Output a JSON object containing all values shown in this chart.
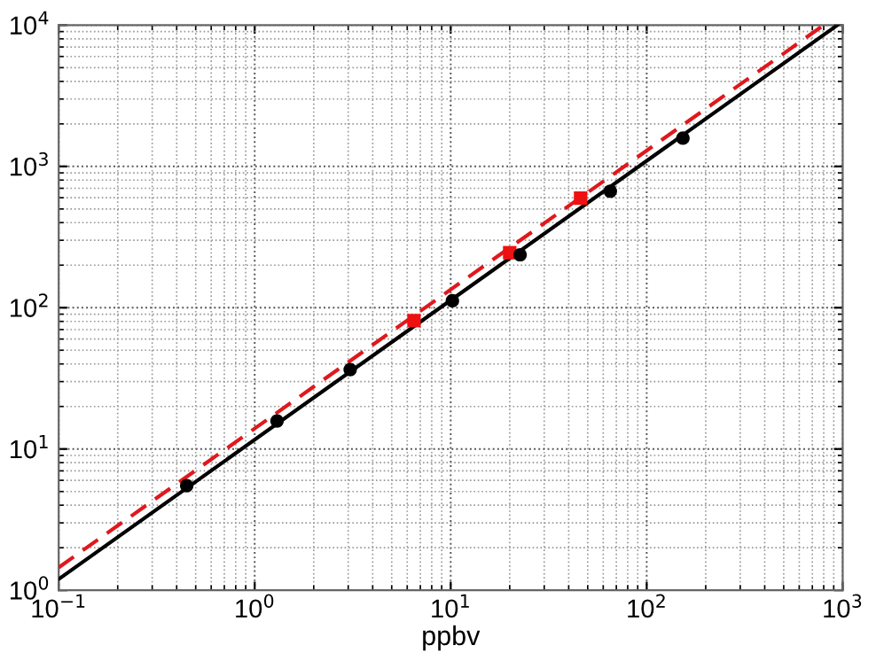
{
  "chart_data": {
    "type": "scatter",
    "xlabel": "ppbv",
    "log": "xy",
    "grid": true,
    "legend": false,
    "xlim": [
      0.1,
      1000
    ],
    "ylim": [
      1,
      10000
    ],
    "xticks": [
      {
        "value": 0.1,
        "label": "10$^{−1}$"
      },
      {
        "value": 1,
        "label": "10$^{0}$"
      },
      {
        "value": 10,
        "label": "10$^{1}$"
      },
      {
        "value": 100,
        "label": "10$^{2}$"
      },
      {
        "value": 1000,
        "label": "10$^{3}$"
      }
    ],
    "yticks": [
      {
        "value": 1,
        "label": "10$^{0}$"
      },
      {
        "value": 10,
        "label": "10$^{1}$"
      },
      {
        "value": 100,
        "label": "10$^{2}$"
      },
      {
        "value": 1000,
        "label": "10$^{3}$"
      },
      {
        "value": 10000,
        "label": "10$^{4}$"
      }
    ],
    "series": [
      {
        "type": "line",
        "color": "#000000",
        "line_style": "solid",
        "marker": "none",
        "x": [
          0.1,
          940
        ],
        "values": [
          1.2,
          10000
        ]
      },
      {
        "type": "line",
        "color": "#e0181c",
        "line_style": "dashed",
        "marker": "none",
        "x": [
          0.1,
          800
        ],
        "values": [
          1.45,
          10000
        ]
      },
      {
        "color": "#ee1111",
        "marker": "square",
        "x": [
          6.5,
          20,
          46
        ],
        "values": [
          81,
          245,
          596
        ]
      },
      {
        "color": "#000000",
        "marker": "circle",
        "x": [
          0.45,
          1.3,
          3.07,
          10.2,
          22.6,
          65.2,
          153
        ],
        "values": [
          5.5,
          15.8,
          36.5,
          112,
          237,
          668,
          1585
        ]
      }
    ]
  }
}
